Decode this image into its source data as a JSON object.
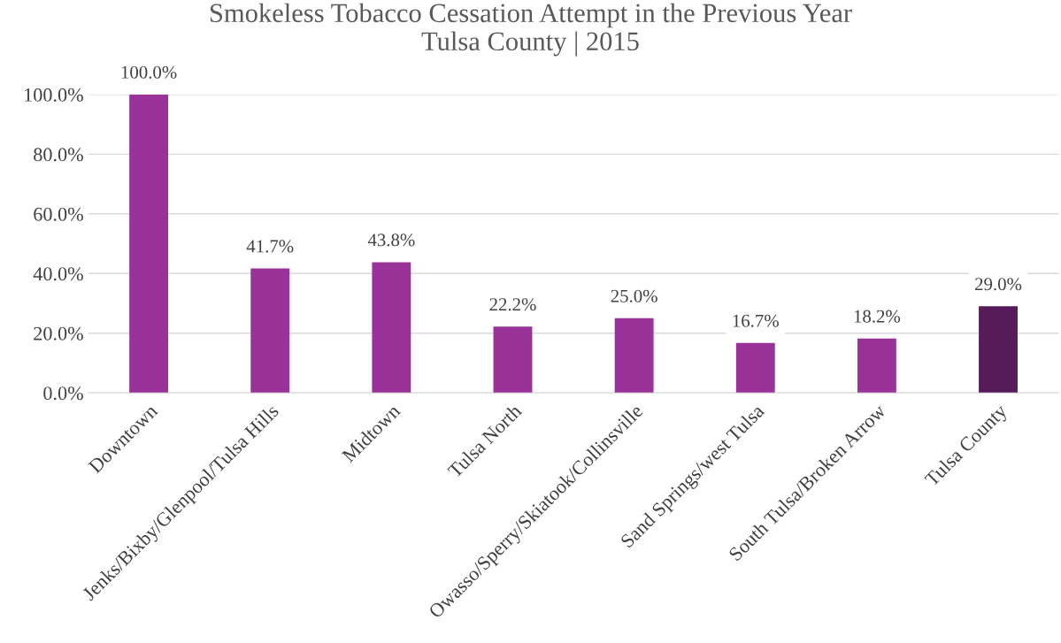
{
  "chart_data": {
    "type": "bar",
    "title": "Smokeless Tobacco Cessation Attempt in the Previous Year\nTulsa County | 2015",
    "categories": [
      "Downtown",
      "Jenks/Bixby/Glenpool/Tulsa Hills",
      "Midtown",
      "Tulsa North",
      "Owasso/Sperry/Skiatook/Collinsville",
      "Sand Springs/west Tulsa",
      "South Tulsa/Broken Arrow",
      "Tulsa County"
    ],
    "values": [
      100.0,
      41.7,
      43.8,
      22.2,
      25.0,
      16.7,
      18.2,
      29.0
    ],
    "colors": [
      "#993399",
      "#993399",
      "#993399",
      "#993399",
      "#993399",
      "#993399",
      "#993399",
      "#561c5a"
    ],
    "value_labels": [
      "100.0%",
      "41.7%",
      "43.8%",
      "22.2%",
      "25.0%",
      "16.7%",
      "18.2%",
      "29.0%"
    ],
    "ylim": [
      0,
      100
    ],
    "yticks": [
      {
        "value": 0,
        "label": "0.0%"
      },
      {
        "value": 20,
        "label": "20.0%"
      },
      {
        "value": 40,
        "label": "40.0%"
      },
      {
        "value": 60,
        "label": "60.0%"
      },
      {
        "value": 80,
        "label": "80.0%"
      },
      {
        "value": 100,
        "label": "100.0%"
      }
    ],
    "grid": "y",
    "legend": false
  }
}
